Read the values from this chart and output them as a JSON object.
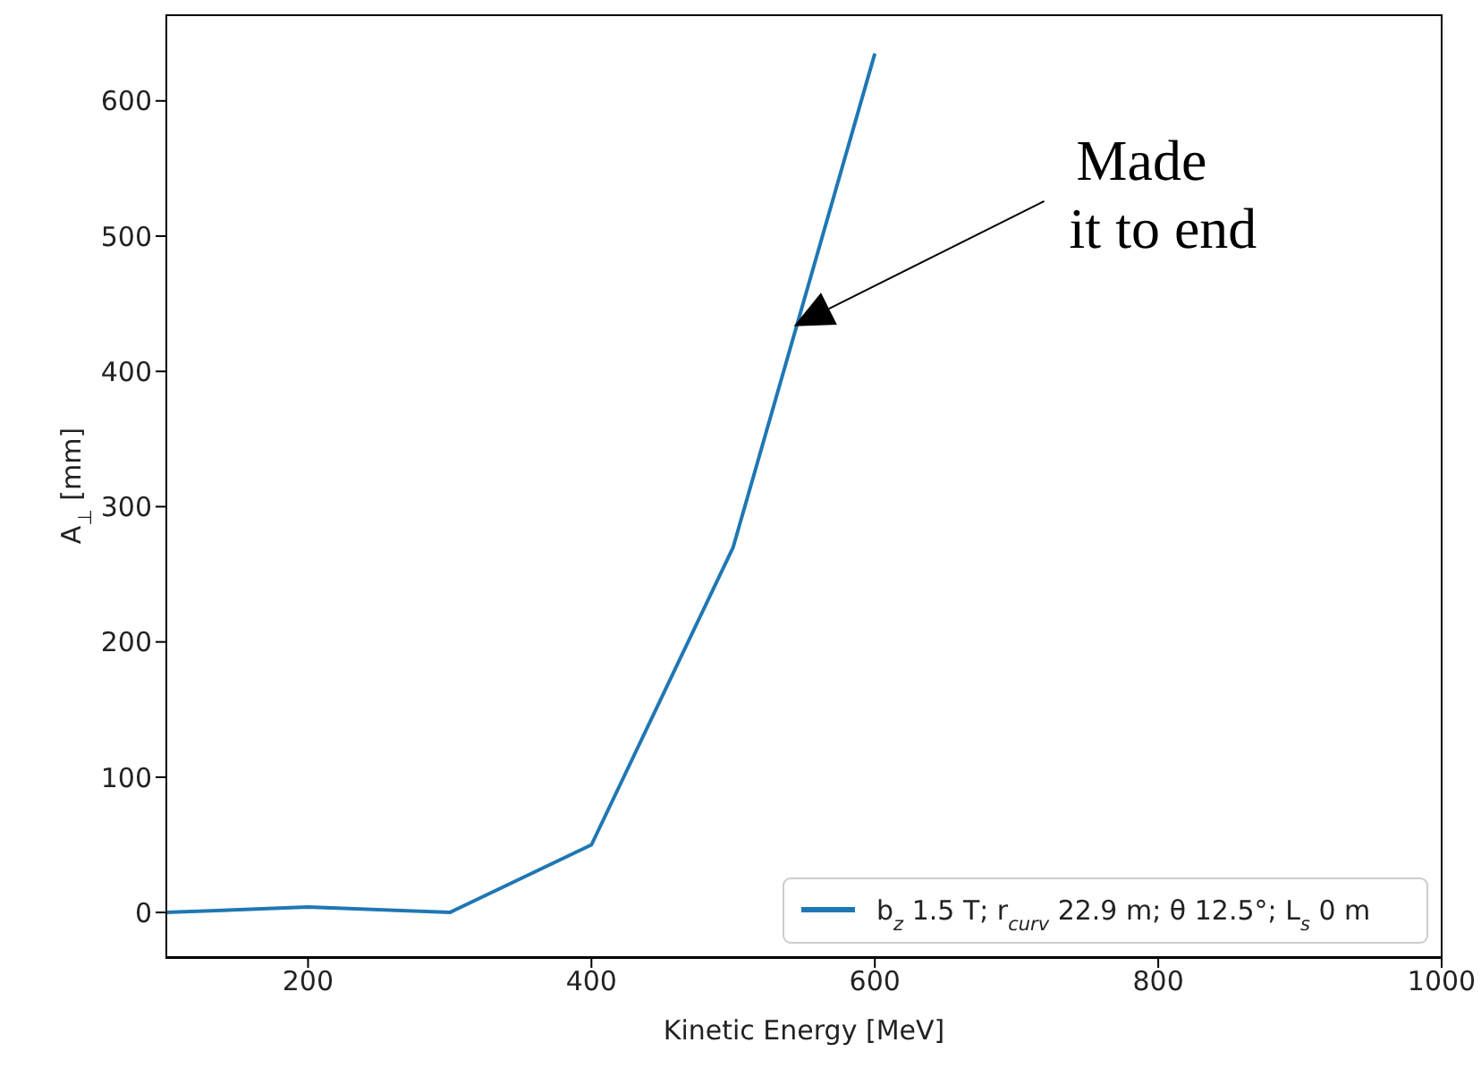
{
  "chart_data": {
    "type": "line",
    "xlabel": "Kinetic Energy [MeV]",
    "ylabel": "A$_{⊥}$ [mm]",
    "x": [
      100,
      200,
      300,
      400,
      500,
      600
    ],
    "series": [
      {
        "name": "b$_{z}$ 1.5 T; r$_{curv}$ 22.9 m; θ 12.5°; L$_{s}$ 0 m",
        "color": "#1f77b4",
        "values": [
          0,
          4,
          0,
          50,
          270,
          635
        ]
      }
    ],
    "xlim": [
      100,
      1000
    ],
    "xticks": [
      200,
      400,
      600,
      800,
      1000
    ],
    "ylim": [
      -33,
      664
    ],
    "yticks": [
      0,
      100,
      200,
      300,
      400,
      500,
      600
    ],
    "legend": "bottom right",
    "marker": "none",
    "line_style": "solid",
    "annotations": [
      "Made\n it to end"
    ]
  }
}
